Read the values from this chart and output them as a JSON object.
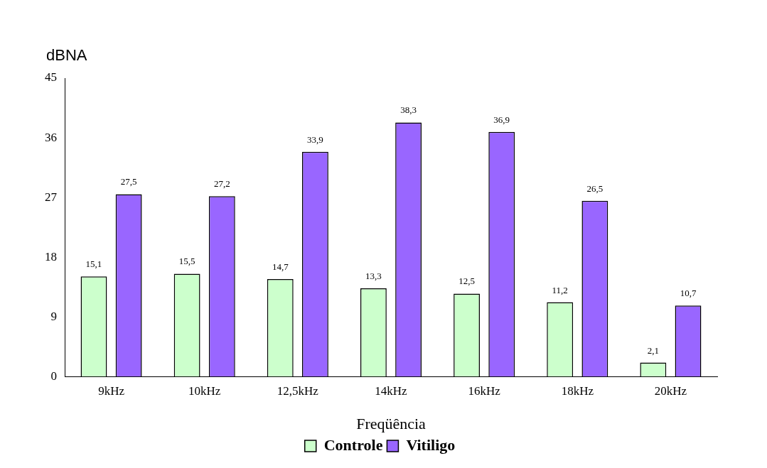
{
  "chart_data": {
    "type": "bar",
    "ylabel": "dBNA",
    "xlabel": "Freqüência",
    "categories": [
      "9kHz",
      "10kHz",
      "12,5kHz",
      "14kHz",
      "16kHz",
      "18kHz",
      "20kHz"
    ],
    "series": [
      {
        "name": "Controle",
        "color": "#ccffcc",
        "values": [
          15.1,
          15.5,
          14.7,
          13.3,
          12.5,
          11.2,
          2.1
        ],
        "value_labels": [
          "15,1",
          "15,5",
          "14,7",
          "13,3",
          "12,5",
          "11,2",
          "2,1"
        ]
      },
      {
        "name": "Vitiligo",
        "color": "#9966ff",
        "values": [
          27.5,
          27.2,
          33.9,
          38.3,
          36.9,
          26.5,
          10.7
        ],
        "value_labels": [
          "27,5",
          "27,2",
          "33,9",
          "38,3",
          "36,9",
          "26,5",
          "10,7"
        ]
      }
    ],
    "ylim": [
      0,
      45
    ],
    "yticks": [
      0,
      9,
      18,
      27,
      36,
      45
    ],
    "grid": false,
    "legend": "bottom"
  }
}
